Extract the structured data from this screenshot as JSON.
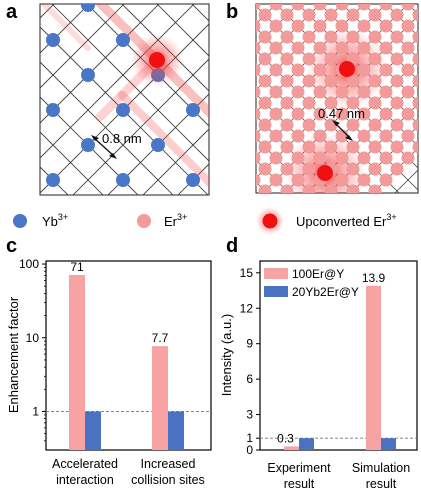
{
  "colors": {
    "yb": "#4a76c8",
    "er": "#f39a9a",
    "er_up": "#f01010",
    "glow": "#f24a4a",
    "bar_pink": "#f7a3a3",
    "bar_blue": "#4a72c4"
  },
  "panels": {
    "a": {
      "label": "a",
      "distance": "0.8 nm"
    },
    "b": {
      "label": "b",
      "distance": "0.47 nm"
    },
    "c": {
      "label": "c"
    },
    "d": {
      "label": "d"
    }
  },
  "legend": {
    "yb": {
      "base": "Yb",
      "sup": "3+"
    },
    "er": {
      "base": "Er",
      "sup": "3+"
    },
    "up": {
      "base": "Upconverted Er",
      "sup": "3+"
    }
  },
  "chart_data": [
    {
      "panel": "c",
      "type": "bar",
      "ylabel": "Enhancement factor",
      "yscale": "log",
      "ylim": [
        0.3,
        110
      ],
      "yticks": [
        1,
        10,
        100
      ],
      "ytick_labels": [
        "1",
        "10",
        "100"
      ],
      "reference_line": 1,
      "categories": [
        {
          "line1": "Accelerated",
          "line2": "interaction"
        },
        {
          "line1": "Increased",
          "line2": "collision sites"
        }
      ],
      "series": [
        {
          "color": "#f7a3a3",
          "values": [
            71,
            7.7
          ],
          "labels": [
            "71",
            "7.7"
          ]
        },
        {
          "color": "#4a72c4",
          "values": [
            1,
            1
          ]
        }
      ]
    },
    {
      "panel": "d",
      "type": "bar",
      "ylabel": "Intensity (a.u.)",
      "ylim": [
        0,
        16
      ],
      "yticks": [
        0,
        1,
        3,
        6,
        9,
        12,
        15
      ],
      "ytick_labels": [
        "0",
        "1",
        "3",
        "6",
        "9",
        "12",
        "15"
      ],
      "reference_line": 1,
      "categories": [
        {
          "line1": "Experiment",
          "line2": "result"
        },
        {
          "line1": "Simulation",
          "line2": "result"
        }
      ],
      "series": [
        {
          "name": "100Er@Y",
          "color": "#f7a3a3",
          "values": [
            0.3,
            13.9
          ],
          "labels": [
            "0.3",
            "13.9"
          ]
        },
        {
          "name": "20Yb2Er@Y",
          "color": "#4a72c4",
          "values": [
            1,
            1
          ]
        }
      ],
      "legend_position": "top-right"
    }
  ]
}
